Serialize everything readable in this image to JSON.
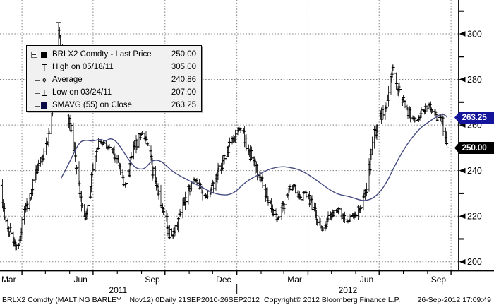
{
  "legend": {
    "rows": [
      {
        "icon": "last-price-square",
        "label": "BRLX2 Comdty - Last Price",
        "value": "250.00"
      },
      {
        "icon": "high-marker",
        "label": "High on 05/18/11",
        "value": "305.00"
      },
      {
        "icon": "average-marker",
        "label": "Average",
        "value": "240.86"
      },
      {
        "icon": "low-marker",
        "label": "Low on 03/24/11",
        "value": "207.00"
      },
      {
        "icon": "smavg-square",
        "label": "SMAVG (55) on Close",
        "value": "263.25"
      }
    ]
  },
  "axis_badges": [
    {
      "text": "263.25",
      "value": 263.25,
      "color": "#15159b"
    },
    {
      "text": "250.00",
      "value": 250.0,
      "color": "#000000"
    }
  ],
  "footer": {
    "left": "BRLX2 Comdty (MALTING BARLEY    Nov12) 0Daily 21SEP2010-26SEP2012",
    "center": "Copyright© 2012 Bloomberg Finance L.P.",
    "right": "26-Sep-2012 17:09:49"
  },
  "colors": {
    "bar": "#000000",
    "sma_line": "#454b80",
    "grid": "#7d7d7d",
    "axis": "#000000",
    "legend_bg": "#f1f1f1",
    "smavg_square": "#0a0a46",
    "badge_navy": "#15159b",
    "badge_black": "#000000"
  },
  "chart_data": {
    "type": "bar",
    "subtype": "daily_ohlc_with_sma",
    "title": "BRLX2 Comdty (MALTING BARLEY Nov12) Daily 21SEP2010-26SEP2012",
    "x_domain": [
      "2011-03-03",
      "2012-10-11"
    ],
    "y_domain": [
      196,
      315
    ],
    "y_ticks_major": [
      200,
      220,
      240,
      260,
      280,
      300
    ],
    "y_ticks_minor": [
      210,
      230,
      250,
      270,
      290,
      310
    ],
    "grid": true,
    "x_month_labels": [
      {
        "label": "Mar",
        "date": "2011-03-15"
      },
      {
        "label": "Jun",
        "date": "2011-06-15"
      },
      {
        "label": "Sep",
        "date": "2011-09-15"
      },
      {
        "label": "Dec",
        "date": "2011-12-15"
      },
      {
        "label": "Mar",
        "date": "2012-03-15"
      },
      {
        "label": "Jun",
        "date": "2012-06-15"
      },
      {
        "label": "Sep",
        "date": "2012-09-15"
      }
    ],
    "x_year_labels": [
      {
        "label": "2011",
        "date": "2011-08-02"
      },
      {
        "label": "2012",
        "date": "2012-05-22"
      }
    ],
    "last_price": 250.0,
    "average": 240.86,
    "sma_last": 263.25,
    "high_annotation": {
      "date": "2011-05-18",
      "value": 305.0
    },
    "low_annotation": {
      "date": "2011-03-24",
      "value": 207.0
    },
    "close_anchors": [
      [
        "2011-03-03",
        238
      ],
      [
        "2011-03-07",
        228
      ],
      [
        "2011-03-10",
        218
      ],
      [
        "2011-03-15",
        212
      ],
      [
        "2011-03-18",
        214
      ],
      [
        "2011-03-22",
        209
      ],
      [
        "2011-03-24",
        207
      ],
      [
        "2011-03-28",
        209
      ],
      [
        "2011-03-31",
        215
      ],
      [
        "2011-04-05",
        222
      ],
      [
        "2011-04-08",
        226
      ],
      [
        "2011-04-13",
        232
      ],
      [
        "2011-04-18",
        237
      ],
      [
        "2011-04-21",
        241
      ],
      [
        "2011-04-27",
        245
      ],
      [
        "2011-05-02",
        251
      ],
      [
        "2011-05-06",
        257
      ],
      [
        "2011-05-11",
        268
      ],
      [
        "2011-05-16",
        288
      ],
      [
        "2011-05-18",
        303
      ],
      [
        "2011-05-20",
        295
      ],
      [
        "2011-05-25",
        283
      ],
      [
        "2011-05-27",
        272
      ],
      [
        "2011-05-31",
        263
      ],
      [
        "2011-06-03",
        258
      ],
      [
        "2011-06-08",
        245
      ],
      [
        "2011-06-13",
        232
      ],
      [
        "2011-06-16",
        224
      ],
      [
        "2011-06-21",
        219
      ],
      [
        "2011-06-24",
        223
      ],
      [
        "2011-06-28",
        231
      ],
      [
        "2011-06-30",
        240
      ],
      [
        "2011-07-05",
        248
      ],
      [
        "2011-07-08",
        251
      ],
      [
        "2011-07-14",
        252
      ],
      [
        "2011-07-20",
        250
      ],
      [
        "2011-07-26",
        249
      ],
      [
        "2011-08-01",
        244
      ],
      [
        "2011-08-05",
        238
      ],
      [
        "2011-08-10",
        234
      ],
      [
        "2011-08-16",
        239
      ],
      [
        "2011-08-19",
        246
      ],
      [
        "2011-08-24",
        251
      ],
      [
        "2011-08-30",
        255
      ],
      [
        "2011-09-02",
        257
      ],
      [
        "2011-09-07",
        253
      ],
      [
        "2011-09-12",
        246
      ],
      [
        "2011-09-15",
        240
      ],
      [
        "2011-09-20",
        234
      ],
      [
        "2011-09-23",
        229
      ],
      [
        "2011-09-28",
        224
      ],
      [
        "2011-10-03",
        218
      ],
      [
        "2011-10-06",
        213
      ],
      [
        "2011-10-11",
        211
      ],
      [
        "2011-10-14",
        214
      ],
      [
        "2011-10-19",
        219
      ],
      [
        "2011-10-25",
        226
      ],
      [
        "2011-10-31",
        231
      ],
      [
        "2011-11-04",
        234
      ],
      [
        "2011-11-09",
        236
      ],
      [
        "2011-11-15",
        233
      ],
      [
        "2011-11-18",
        230
      ],
      [
        "2011-11-23",
        229
      ],
      [
        "2011-11-29",
        232
      ],
      [
        "2011-12-05",
        236
      ],
      [
        "2011-12-09",
        240
      ],
      [
        "2011-12-15",
        245
      ],
      [
        "2011-12-21",
        250
      ],
      [
        "2011-12-28",
        254
      ],
      [
        "2012-01-04",
        258
      ],
      [
        "2012-01-10",
        256
      ],
      [
        "2012-01-13",
        252
      ],
      [
        "2012-01-18",
        247
      ],
      [
        "2012-01-24",
        242
      ],
      [
        "2012-01-31",
        237
      ],
      [
        "2012-02-07",
        231
      ],
      [
        "2012-02-14",
        225
      ],
      [
        "2012-02-17",
        221
      ],
      [
        "2012-02-22",
        219
      ],
      [
        "2012-02-28",
        224
      ],
      [
        "2012-03-05",
        229
      ],
      [
        "2012-03-09",
        232
      ],
      [
        "2012-03-14",
        233
      ],
      [
        "2012-03-19",
        230
      ],
      [
        "2012-03-23",
        228
      ],
      [
        "2012-03-28",
        231
      ],
      [
        "2012-04-03",
        227
      ],
      [
        "2012-04-10",
        221
      ],
      [
        "2012-04-16",
        216
      ],
      [
        "2012-04-19",
        214
      ],
      [
        "2012-04-25",
        217
      ],
      [
        "2012-05-01",
        221
      ],
      [
        "2012-05-08",
        223
      ],
      [
        "2012-05-15",
        221
      ],
      [
        "2012-05-22",
        218
      ],
      [
        "2012-05-29",
        220
      ],
      [
        "2012-06-05",
        223
      ],
      [
        "2012-06-11",
        226
      ],
      [
        "2012-06-14",
        232
      ],
      [
        "2012-06-19",
        242
      ],
      [
        "2012-06-22",
        252
      ],
      [
        "2012-06-27",
        258
      ],
      [
        "2012-07-03",
        263
      ],
      [
        "2012-07-09",
        268
      ],
      [
        "2012-07-12",
        273
      ],
      [
        "2012-07-16",
        280
      ],
      [
        "2012-07-18",
        286
      ],
      [
        "2012-07-23",
        280
      ],
      [
        "2012-07-26",
        275
      ],
      [
        "2012-07-31",
        271
      ],
      [
        "2012-08-06",
        267
      ],
      [
        "2012-08-10",
        264
      ],
      [
        "2012-08-15",
        262
      ],
      [
        "2012-08-21",
        263
      ],
      [
        "2012-08-24",
        265
      ],
      [
        "2012-08-29",
        267
      ],
      [
        "2012-09-04",
        269
      ],
      [
        "2012-09-07",
        266
      ],
      [
        "2012-09-11",
        264
      ],
      [
        "2012-09-14",
        262
      ],
      [
        "2012-09-18",
        262
      ],
      [
        "2012-09-20",
        261
      ],
      [
        "2012-09-24",
        256
      ],
      [
        "2012-09-25",
        252
      ],
      [
        "2012-09-26",
        250
      ]
    ],
    "sma55_anchors": [
      [
        "2011-05-21",
        236.6
      ],
      [
        "2011-05-31",
        243.0
      ],
      [
        "2011-06-13",
        252.5
      ],
      [
        "2011-06-22",
        253.5
      ],
      [
        "2011-06-30",
        252.8
      ],
      [
        "2011-07-11",
        254.0
      ],
      [
        "2011-07-17",
        252.6
      ],
      [
        "2011-07-22",
        254.2
      ],
      [
        "2011-07-29",
        253.4
      ],
      [
        "2011-08-05",
        250.5
      ],
      [
        "2011-08-14",
        245.5
      ],
      [
        "2011-08-23",
        241.5
      ],
      [
        "2011-08-30",
        240.5
      ],
      [
        "2011-09-06",
        241.0
      ],
      [
        "2011-09-14",
        244.4
      ],
      [
        "2011-09-22",
        244.7
      ],
      [
        "2011-09-29",
        243.4
      ],
      [
        "2011-10-11",
        239.5
      ],
      [
        "2011-10-24",
        237.0
      ],
      [
        "2011-11-07",
        234.5
      ],
      [
        "2011-11-21",
        232.0
      ],
      [
        "2011-12-03",
        230.0
      ],
      [
        "2011-12-15",
        229.2
      ],
      [
        "2011-12-24",
        229.6
      ],
      [
        "2011-12-31",
        231.0
      ],
      [
        "2012-01-13",
        235.3
      ],
      [
        "2012-01-28",
        238.1
      ],
      [
        "2012-02-12",
        240.8
      ],
      [
        "2012-02-26",
        241.8
      ],
      [
        "2012-03-08",
        241.5
      ],
      [
        "2012-03-21",
        240.4
      ],
      [
        "2012-04-03",
        238.0
      ],
      [
        "2012-04-17",
        234.5
      ],
      [
        "2012-04-29",
        231.5
      ],
      [
        "2012-05-10",
        229.5
      ],
      [
        "2012-05-19",
        229.0
      ],
      [
        "2012-05-28",
        228.2
      ],
      [
        "2012-06-07",
        227.0
      ],
      [
        "2012-06-14",
        226.8
      ],
      [
        "2012-06-23",
        227.8
      ],
      [
        "2012-07-02",
        230.5
      ],
      [
        "2012-07-11",
        235.0
      ],
      [
        "2012-07-20",
        241.5
      ],
      [
        "2012-08-01",
        249.0
      ],
      [
        "2012-08-11",
        254.0
      ],
      [
        "2012-08-22",
        258.5
      ],
      [
        "2012-09-03",
        261.5
      ],
      [
        "2012-09-12",
        263.5
      ],
      [
        "2012-09-19",
        265.0
      ],
      [
        "2012-09-25",
        264.0
      ],
      [
        "2012-09-26",
        263.25
      ]
    ]
  }
}
